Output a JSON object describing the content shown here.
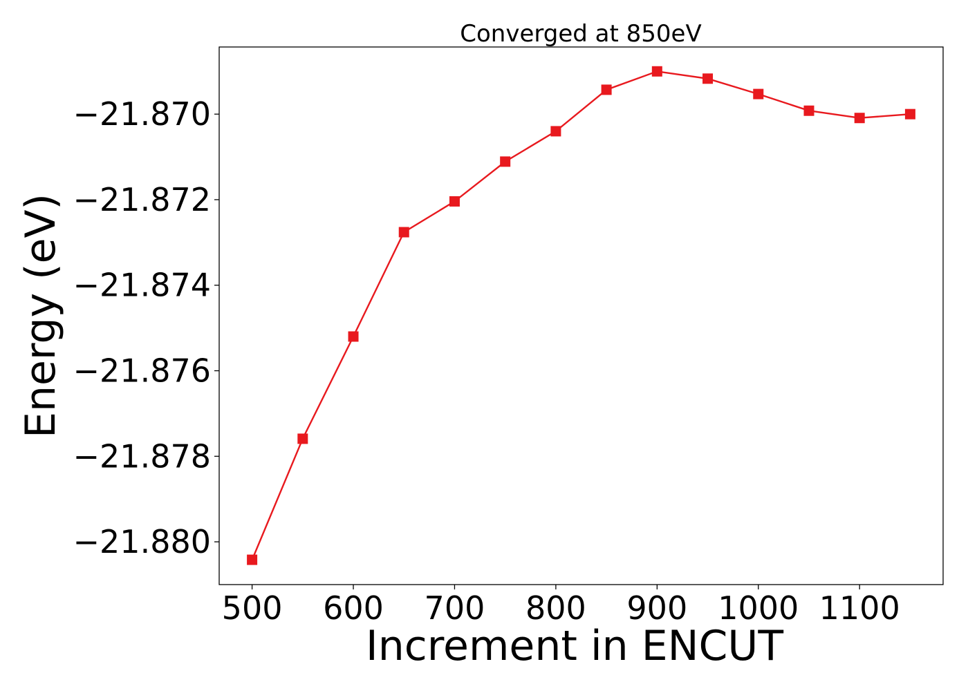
{
  "chart_data": {
    "type": "line",
    "title": "Converged at 850eV",
    "xlabel": "Increment in ENCUT",
    "ylabel": "Energy (eV)",
    "x": [
      500,
      550,
      600,
      650,
      700,
      750,
      800,
      850,
      900,
      950,
      1000,
      1050,
      1100,
      1150
    ],
    "series": [
      {
        "values": [
          -21.88042,
          -21.87759,
          -21.8752,
          -21.87276,
          -21.87204,
          -21.87111,
          -21.8704,
          -21.86943,
          -21.869,
          -21.86917,
          -21.86953,
          -21.86992,
          -21.87009,
          -21.87
        ],
        "color": "#e8191e",
        "marker": "square"
      }
    ],
    "xlim": [
      467.5,
      1182.5
    ],
    "ylim": [
      -21.881,
      -21.86843
    ],
    "xticks": [
      500,
      600,
      700,
      800,
      900,
      1000,
      1100
    ],
    "xtick_labels": [
      "500",
      "600",
      "700",
      "800",
      "900",
      "1000",
      "1100"
    ],
    "yticks": [
      -21.88,
      -21.878,
      -21.876,
      -21.874,
      -21.872,
      -21.87
    ],
    "ytick_labels": [
      "−21.880",
      "−21.878",
      "−21.876",
      "−21.874",
      "−21.872",
      "−21.870"
    ],
    "grid": false,
    "legend": "none"
  }
}
